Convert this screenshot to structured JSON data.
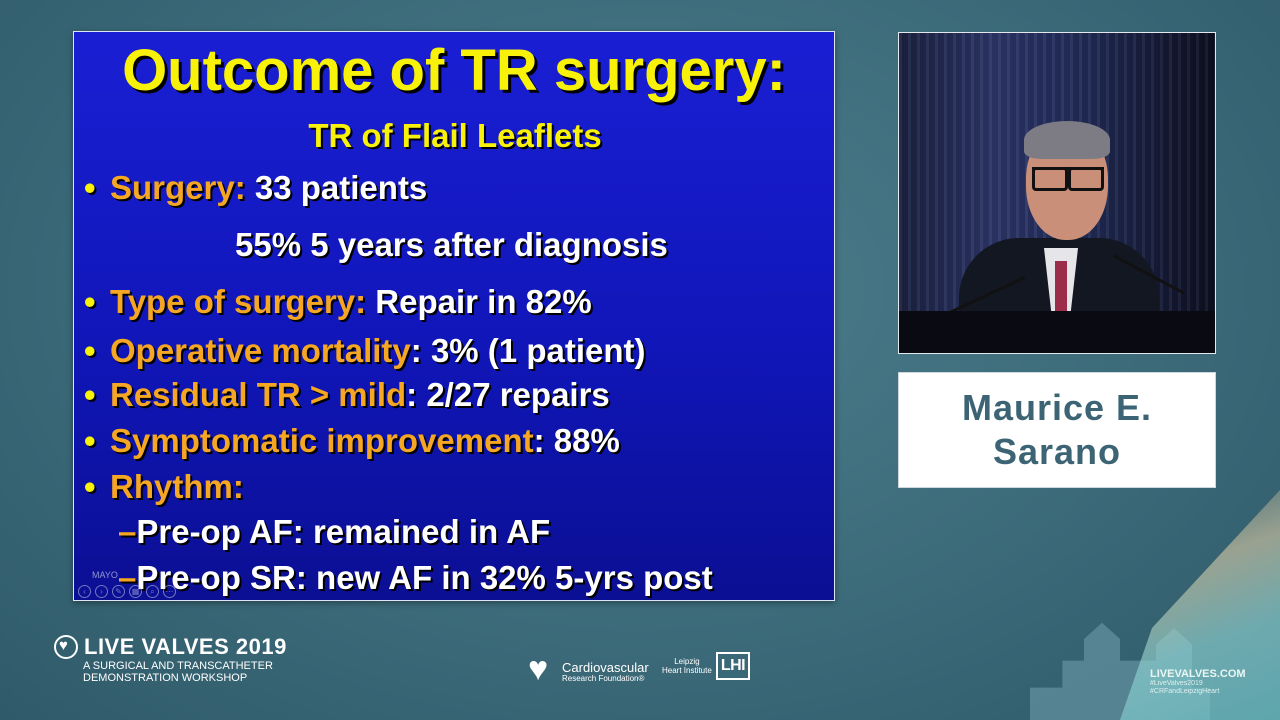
{
  "slide": {
    "title": "Outcome of TR surgery:",
    "subtitle": "TR of Flail Leaflets",
    "bullet_char": "•",
    "lines": {
      "surgery_key": "Surgery:",
      "surgery_val": " 33 patients",
      "surgery_detail": "55% 5 years after diagnosis",
      "type_key": "Type of surgery:",
      "type_val": " Repair in 82%",
      "mortality_key": "Operative mortality",
      "mortality_val": ": 3% (1 patient)",
      "residual_key": "Residual TR > mild",
      "residual_val": ": 2/27 repairs",
      "symptom_key": "Symptomatic improvement",
      "symptom_val": ": 88%",
      "rhythm_key": "Rhythm:",
      "dash": "–",
      "preop_af": "Pre-op AF: remained in AF",
      "preop_sr": "Pre-op SR: new AF in 32% 5-yrs post"
    },
    "watermark": "MAYO",
    "nav_icons": [
      "back-icon",
      "forward-icon",
      "pen-icon",
      "slides-icon",
      "zoom-icon",
      "more-icon"
    ]
  },
  "speaker": {
    "first_line": "Maurice E.",
    "last_line": "Sarano"
  },
  "footer": {
    "brand_name": "LIVE VALVES 2019",
    "brand_sub1": "A SURGICAL AND TRANSCATHETER",
    "brand_sub2": "DEMONSTRATION WORKSHOP",
    "crf_line1": "Cardiovascular",
    "crf_line2": "Research Foundation®",
    "lhi_line1": "Leipzig",
    "lhi_line2": "Heart Institute",
    "lhi_box": "LHI",
    "site_url": "LIVEVALVES.COM",
    "site_tag1": "#LiveValves2019",
    "site_tag2": "#CRFandLeipzigHeart"
  },
  "colors": {
    "slide_bg": "#1016b8",
    "title_yellow": "#f8f20a",
    "key_orange": "#f5a623",
    "name_text": "#3c6474",
    "page_bg": "#3c6b7a"
  }
}
